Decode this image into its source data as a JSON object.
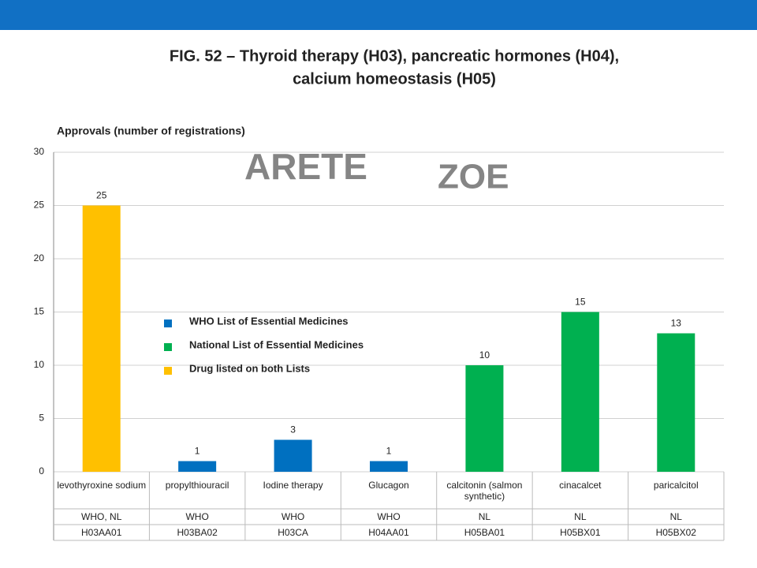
{
  "chart_data": {
    "type": "bar",
    "title": [
      "FIG. 52 – Thyroid therapy (H03), pancreatic hormones (H04),",
      "calcium homeostasis (H05)"
    ],
    "y_label": "Approvals (number of registrations)",
    "watermark": [
      "ARETE",
      "ZOE"
    ],
    "categories": [
      "levothyroxine sodium",
      "propylthiouracil",
      "Iodine therapy",
      "Glucagon",
      "calcitonin (salmon synthetic)",
      "cinacalcet",
      "paricalcitol"
    ],
    "values": [
      25,
      1,
      3,
      1,
      10,
      15,
      13
    ],
    "colors": [
      "#FFC000",
      "#0070C0",
      "#0070C0",
      "#0070C0",
      "#00B050",
      "#00B050",
      "#00B050"
    ],
    "legend": [
      {
        "name": "WHO List of Essential Medicines",
        "color": "#0070C0"
      },
      {
        "name": "National List of Essential Medicines",
        "color": "#00B050"
      },
      {
        "name": "Drug listed on both Lists",
        "color": "#FFC000"
      }
    ],
    "table_rows": [
      [
        "WHO, NL",
        "WHO",
        "WHO",
        "WHO",
        "NL",
        "NL",
        "NL"
      ],
      [
        "H03AA01",
        "H03BA02",
        "H03CA",
        "H04AA01",
        "H05BA01",
        "H05BX01",
        "H05BX02"
      ]
    ],
    "ylim": [
      0,
      30
    ],
    "yticks": [
      0,
      5,
      10,
      15,
      20,
      25,
      30
    ],
    "grid": true
  }
}
